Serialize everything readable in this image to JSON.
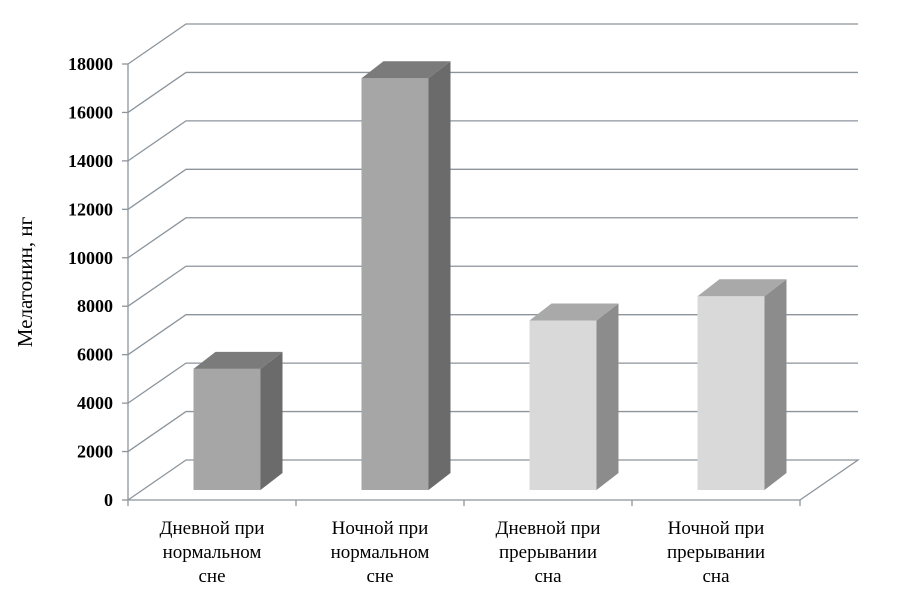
{
  "chart_data": {
    "type": "bar",
    "style": "3d-column",
    "categories": [
      [
        "Дневной при",
        "нормальном",
        "сне"
      ],
      [
        "Ночной при",
        "нормальном",
        "сне"
      ],
      [
        "Дневной при",
        "прерывании",
        "сна"
      ],
      [
        "Ночной при",
        "прерывании",
        "сна"
      ]
    ],
    "values": [
      5000,
      17000,
      7000,
      8000
    ],
    "ylabel": "Мелатонин, нг",
    "xlabel": "",
    "title": "",
    "ylim": [
      0,
      18000
    ],
    "yticks": [
      "0",
      "2000",
      "4000",
      "6000",
      "8000",
      "10000",
      "12000",
      "14000",
      "16000",
      "18000"
    ],
    "grid": true,
    "legend": "none",
    "colors": {
      "bar_front": [
        "#a6a6a6",
        "#a6a6a6",
        "#d9d9d9",
        "#d9d9d9"
      ],
      "bar_side": [
        "#6b6b6b",
        "#6b6b6b",
        "#8c8c8c",
        "#8c8c8c"
      ],
      "bar_top": [
        "#7b7b7b",
        "#7b7b7b",
        "#a9a9a9",
        "#a9a9a9"
      ],
      "grid": "#8c949c"
    }
  }
}
